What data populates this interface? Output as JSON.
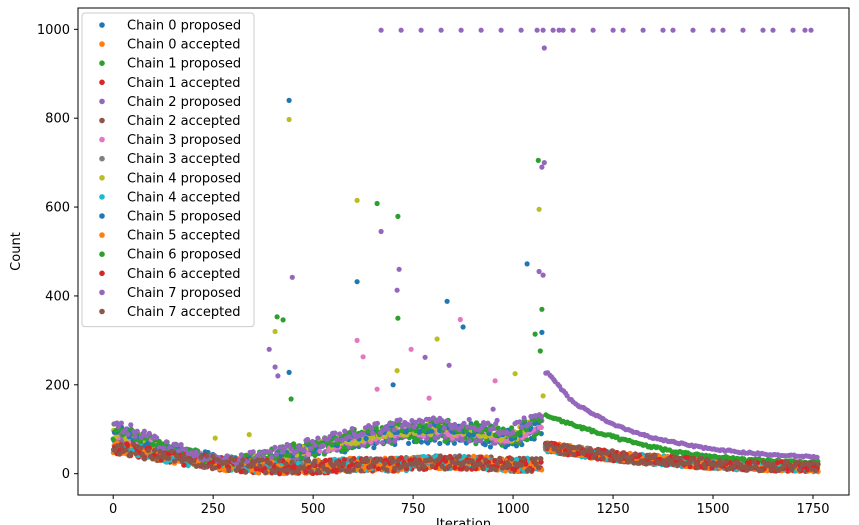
{
  "chart_data": {
    "type": "scatter",
    "title": "",
    "xlabel": "Iteration",
    "ylabel": "Count",
    "xlim": [
      -88,
      1840
    ],
    "ylim": [
      -48,
      1048
    ],
    "xticks": [
      0,
      250,
      500,
      750,
      1000,
      1250,
      1500,
      1750
    ],
    "yticks": [
      0,
      200,
      400,
      600,
      800,
      1000
    ],
    "grid": false,
    "legend_position": "top-left",
    "series": [
      {
        "name": "Chain 0 proposed",
        "color": "#1f77b4"
      },
      {
        "name": "Chain 0 accepted",
        "color": "#ff7f0e"
      },
      {
        "name": "Chain 1 proposed",
        "color": "#2ca02c"
      },
      {
        "name": "Chain 1 accepted",
        "color": "#d62728"
      },
      {
        "name": "Chain 2 proposed",
        "color": "#9467bd"
      },
      {
        "name": "Chain 2 accepted",
        "color": "#8c564b"
      },
      {
        "name": "Chain 3 proposed",
        "color": "#e377c2"
      },
      {
        "name": "Chain 3 accepted",
        "color": "#7f7f7f"
      },
      {
        "name": "Chain 4 proposed",
        "color": "#bcbd22"
      },
      {
        "name": "Chain 4 accepted",
        "color": "#17becf"
      },
      {
        "name": "Chain 5 proposed",
        "color": "#1f77b4"
      },
      {
        "name": "Chain 5 accepted",
        "color": "#ff7f0e"
      },
      {
        "name": "Chain 6 proposed",
        "color": "#2ca02c"
      },
      {
        "name": "Chain 6 accepted",
        "color": "#d62728"
      },
      {
        "name": "Chain 7 proposed",
        "color": "#9467bd"
      },
      {
        "name": "Chain 7 accepted",
        "color": "#8c564b"
      }
    ],
    "trend_points": {
      "proposed_early": [
        [
          0,
          100
        ],
        [
          100,
          65
        ],
        [
          200,
          40
        ],
        [
          300,
          25
        ],
        [
          400,
          40
        ],
        [
          500,
          60
        ],
        [
          600,
          80
        ],
        [
          700,
          95
        ],
        [
          800,
          100
        ],
        [
          900,
          95
        ],
        [
          1000,
          85
        ],
        [
          1070,
          120
        ]
      ],
      "accepted_early": [
        [
          0,
          60
        ],
        [
          100,
          45
        ],
        [
          200,
          30
        ],
        [
          300,
          20
        ],
        [
          400,
          15
        ],
        [
          500,
          15
        ],
        [
          600,
          20
        ],
        [
          700,
          20
        ],
        [
          800,
          25
        ],
        [
          900,
          25
        ],
        [
          1000,
          20
        ],
        [
          1070,
          20
        ]
      ],
      "chain7_proposed_late": [
        [
          1085,
          228
        ],
        [
          1150,
          160
        ],
        [
          1250,
          110
        ],
        [
          1350,
          80
        ],
        [
          1450,
          62
        ],
        [
          1550,
          50
        ],
        [
          1650,
          42
        ],
        [
          1750,
          38
        ]
      ],
      "chain6_proposed_late": [
        [
          1085,
          130
        ],
        [
          1200,
          95
        ],
        [
          1300,
          70
        ],
        [
          1400,
          50
        ],
        [
          1500,
          38
        ],
        [
          1600,
          30
        ],
        [
          1750,
          25
        ]
      ],
      "accepted_late": [
        [
          1085,
          60
        ],
        [
          1200,
          45
        ],
        [
          1300,
          35
        ],
        [
          1400,
          28
        ],
        [
          1500,
          22
        ],
        [
          1600,
          18
        ],
        [
          1750,
          15
        ]
      ]
    },
    "outliers": [
      {
        "series": 4,
        "points": [
          [
            670,
            998
          ],
          [
            720,
            998
          ],
          [
            770,
            998
          ],
          [
            820,
            998
          ],
          [
            870,
            998
          ],
          [
            920,
            998
          ],
          [
            970,
            998
          ],
          [
            1020,
            998
          ],
          [
            1060,
            998
          ],
          [
            1075,
            998
          ],
          [
            1100,
            998
          ],
          [
            1115,
            998
          ],
          [
            1125,
            998
          ],
          [
            1150,
            998
          ],
          [
            1200,
            998
          ],
          [
            1250,
            998
          ],
          [
            1275,
            998
          ],
          [
            1325,
            998
          ],
          [
            1375,
            998
          ],
          [
            1400,
            998
          ],
          [
            1450,
            998
          ],
          [
            1500,
            998
          ],
          [
            1525,
            998
          ],
          [
            1575,
            998
          ],
          [
            1625,
            998
          ],
          [
            1650,
            998
          ],
          [
            1700,
            998
          ],
          [
            1730,
            998
          ],
          [
            1745,
            998
          ],
          [
            1078,
            958
          ],
          [
            1078,
            700
          ],
          [
            1072,
            690
          ],
          [
            1075,
            447
          ],
          [
            1065,
            455
          ],
          [
            670,
            545
          ],
          [
            715,
            460
          ],
          [
            710,
            413
          ],
          [
            390,
            280
          ],
          [
            405,
            240
          ],
          [
            412,
            220
          ]
        ]
      },
      {
        "series": 0,
        "points": [
          [
            440,
            840
          ],
          [
            610,
            432
          ],
          [
            835,
            388
          ],
          [
            875,
            330
          ],
          [
            1035,
            472
          ],
          [
            1072,
            318
          ],
          [
            440,
            228
          ],
          [
            700,
            200
          ]
        ]
      },
      {
        "series": 2,
        "points": [
          [
            660,
            608
          ],
          [
            712,
            579
          ],
          [
            1063,
            705
          ],
          [
            410,
            353
          ],
          [
            425,
            346
          ],
          [
            712,
            350
          ],
          [
            1072,
            370
          ],
          [
            1055,
            314
          ],
          [
            1068,
            276
          ],
          [
            445,
            168
          ]
        ]
      },
      {
        "series": 8,
        "points": [
          [
            440,
            797
          ],
          [
            610,
            615
          ],
          [
            1065,
            595
          ],
          [
            405,
            320
          ],
          [
            255,
            80
          ],
          [
            340,
            88
          ],
          [
            710,
            232
          ],
          [
            810,
            303
          ],
          [
            1005,
            225
          ],
          [
            1075,
            175
          ]
        ]
      },
      {
        "series": 6,
        "points": [
          [
            610,
            300
          ],
          [
            625,
            263
          ],
          [
            868,
            347
          ],
          [
            745,
            280
          ],
          [
            955,
            209
          ],
          [
            660,
            190
          ],
          [
            790,
            170
          ]
        ]
      },
      {
        "series": 4,
        "points": [
          [
            448,
            442
          ],
          [
            780,
            262
          ],
          [
            840,
            244
          ],
          [
            950,
            145
          ],
          [
            960,
            120
          ]
        ]
      }
    ]
  }
}
